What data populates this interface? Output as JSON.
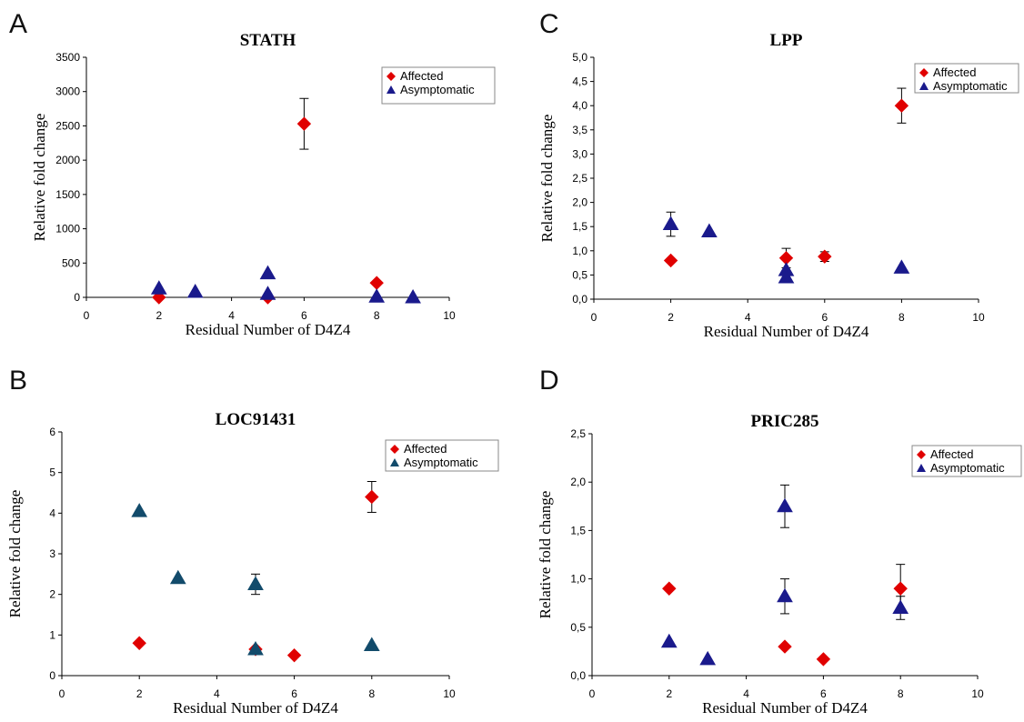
{
  "figure": {
    "panels": [
      {
        "letter": "A"
      },
      {
        "letter": "C"
      },
      {
        "letter": "B"
      },
      {
        "letter": "D"
      }
    ]
  },
  "colors": {
    "affected": "#e00000",
    "asymptomatic": "#1a1a8c",
    "asymptomatic_alt": "#124b6b",
    "axis": "#000000"
  },
  "chart_data": [
    {
      "panel": "A",
      "type": "scatter",
      "title": "STATH",
      "xlabel": "Residual Number of D4Z4",
      "ylabel": "Relative fold change",
      "xlim": [
        0,
        10
      ],
      "ylim": [
        0,
        3500
      ],
      "xticks": [
        "0",
        "2",
        "4",
        "6",
        "8",
        "10"
      ],
      "yticks": [
        "0",
        "500",
        "1000",
        "1500",
        "2000",
        "2500",
        "3000",
        "3500"
      ],
      "grid": false,
      "legend_position": "top-right",
      "series": [
        {
          "name": "Affected",
          "marker": "diamond",
          "points": [
            {
              "x": 2,
              "y": 0
            },
            {
              "x": 5,
              "y": 0
            },
            {
              "x": 6,
              "y": 2530,
              "err": 370
            },
            {
              "x": 8,
              "y": 210
            }
          ]
        },
        {
          "name": "Asymptomatic",
          "marker": "triangle",
          "points": [
            {
              "x": 2,
              "y": 130
            },
            {
              "x": 3,
              "y": 80
            },
            {
              "x": 5,
              "y": 350
            },
            {
              "x": 5,
              "y": 50
            },
            {
              "x": 8,
              "y": 10
            },
            {
              "x": 9,
              "y": 0
            }
          ]
        }
      ]
    },
    {
      "panel": "C",
      "type": "scatter",
      "title": "LPP",
      "xlabel": "Residual Number of D4Z4",
      "ylabel": "Relative fold change",
      "xlim": [
        0,
        10
      ],
      "ylim": [
        0,
        5
      ],
      "xticks": [
        "0",
        "2",
        "4",
        "6",
        "8",
        "10"
      ],
      "yticks": [
        "0,0",
        "0,5",
        "1,0",
        "1,5",
        "2,0",
        "2,5",
        "3,0",
        "3,5",
        "4,0",
        "4,5",
        "5,0"
      ],
      "grid": false,
      "legend_position": "top-right",
      "series": [
        {
          "name": "Affected",
          "marker": "diamond",
          "points": [
            {
              "x": 2,
              "y": 0.8
            },
            {
              "x": 5,
              "y": 0.85,
              "err": 0.2
            },
            {
              "x": 6,
              "y": 0.88,
              "err": 0.1
            },
            {
              "x": 8,
              "y": 4.0,
              "err": 0.36
            }
          ]
        },
        {
          "name": "Asymptomatic",
          "marker": "triangle",
          "points": [
            {
              "x": 2,
              "y": 1.55,
              "err": 0.25
            },
            {
              "x": 3,
              "y": 1.4
            },
            {
              "x": 5,
              "y": 0.6
            },
            {
              "x": 5,
              "y": 0.45
            },
            {
              "x": 8,
              "y": 0.65
            }
          ]
        }
      ]
    },
    {
      "panel": "B",
      "type": "scatter",
      "title": "LOC91431",
      "xlabel": "Residual Number of D4Z4",
      "ylabel": "Relative fold change",
      "xlim": [
        0,
        10
      ],
      "ylim": [
        0,
        6
      ],
      "xticks": [
        "0",
        "2",
        "4",
        "6",
        "8",
        "10"
      ],
      "yticks": [
        "0",
        "1",
        "2",
        "3",
        "4",
        "5",
        "6"
      ],
      "grid": false,
      "legend_position": "top-right",
      "series": [
        {
          "name": "Affected",
          "marker": "diamond",
          "points": [
            {
              "x": 2,
              "y": 0.8
            },
            {
              "x": 5,
              "y": 0.65
            },
            {
              "x": 6,
              "y": 0.5
            },
            {
              "x": 8,
              "y": 4.4,
              "err": 0.38
            }
          ]
        },
        {
          "name": "Asymptomatic",
          "marker": "triangle",
          "points": [
            {
              "x": 2,
              "y": 4.05
            },
            {
              "x": 3,
              "y": 2.4
            },
            {
              "x": 5,
              "y": 2.25,
              "err": 0.25
            },
            {
              "x": 5,
              "y": 0.65
            },
            {
              "x": 8,
              "y": 0.75
            }
          ]
        }
      ]
    },
    {
      "panel": "D",
      "type": "scatter",
      "title": "PRIC285",
      "xlabel": "Residual Number of D4Z4",
      "ylabel": "Relative fold change",
      "xlim": [
        0,
        10
      ],
      "ylim": [
        0,
        2.5
      ],
      "xticks": [
        "0",
        "2",
        "4",
        "6",
        "8",
        "10"
      ],
      "yticks": [
        "0,0",
        "0,5",
        "1,0",
        "1,5",
        "2,0",
        "2,5"
      ],
      "grid": false,
      "legend_position": "top-right",
      "series": [
        {
          "name": "Affected",
          "marker": "diamond",
          "points": [
            {
              "x": 2,
              "y": 0.9
            },
            {
              "x": 5,
              "y": 0.3
            },
            {
              "x": 6,
              "y": 0.17
            },
            {
              "x": 8,
              "y": 0.9,
              "err": 0.25
            }
          ]
        },
        {
          "name": "Asymptomatic",
          "marker": "triangle",
          "points": [
            {
              "x": 2,
              "y": 0.35
            },
            {
              "x": 3,
              "y": 0.17
            },
            {
              "x": 5,
              "y": 1.75,
              "err": 0.22
            },
            {
              "x": 5,
              "y": 0.82,
              "err": 0.18
            },
            {
              "x": 8,
              "y": 0.7,
              "err": 0.12
            }
          ]
        }
      ]
    }
  ]
}
